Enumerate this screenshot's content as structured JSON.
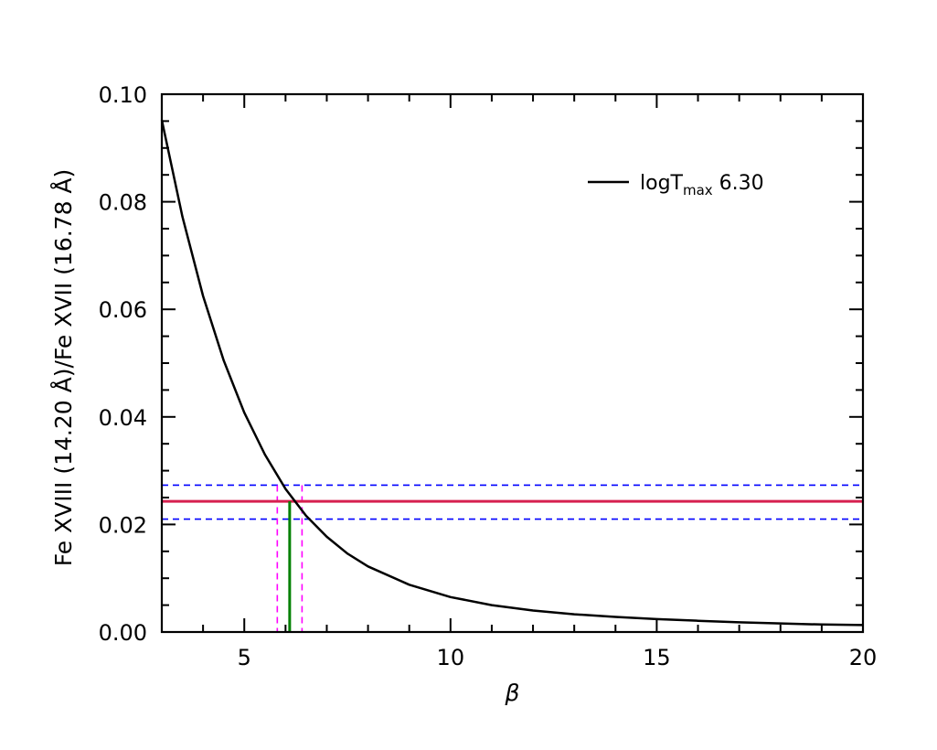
{
  "chart_data": {
    "type": "line",
    "xlabel": "β",
    "ylabel": "Fe XVIII (14.20 Å)/Fe XVII (16.78 Å)",
    "xlim": [
      3,
      20
    ],
    "ylim": [
      0.0,
      0.1
    ],
    "xticks": [
      5,
      10,
      15,
      20
    ],
    "xtick_labels": [
      "5",
      "10",
      "15",
      "20"
    ],
    "yticks": [
      0.0,
      0.02,
      0.04,
      0.06,
      0.08,
      0.1
    ],
    "ytick_labels": [
      "0.00",
      "0.02",
      "0.04",
      "0.06",
      "0.08",
      "0.10"
    ],
    "grid": false,
    "legend_position": "top-right",
    "legend": {
      "base": "logT",
      "subscript": "max",
      "value": " 6.30"
    },
    "series": [
      {
        "name": "logTmax 6.30",
        "color": "#000000",
        "x": [
          3,
          3.5,
          4,
          4.5,
          5,
          5.5,
          6,
          6.5,
          7,
          7.5,
          8,
          9,
          10,
          11,
          12,
          13,
          14,
          15,
          16,
          17,
          18,
          19,
          20
        ],
        "y": [
          0.0952,
          0.0772,
          0.0625,
          0.0505,
          0.0408,
          0.033,
          0.0266,
          0.0216,
          0.0177,
          0.0146,
          0.0122,
          0.0088,
          0.0065,
          0.005,
          0.004,
          0.0033,
          0.0028,
          0.0024,
          0.0021,
          0.0018,
          0.0016,
          0.0014,
          0.0013
        ]
      }
    ],
    "reference_lines": {
      "measured_ratio": {
        "y": 0.0243,
        "color": "#d6204f"
      },
      "ratio_bounds": {
        "y": [
          0.021,
          0.0273
        ],
        "color": "#0000ff"
      },
      "beta_estimate": {
        "x": 6.1,
        "color": "#008000"
      },
      "beta_bounds": {
        "x": [
          5.8,
          6.4
        ],
        "color": "#ff00ff"
      }
    }
  }
}
